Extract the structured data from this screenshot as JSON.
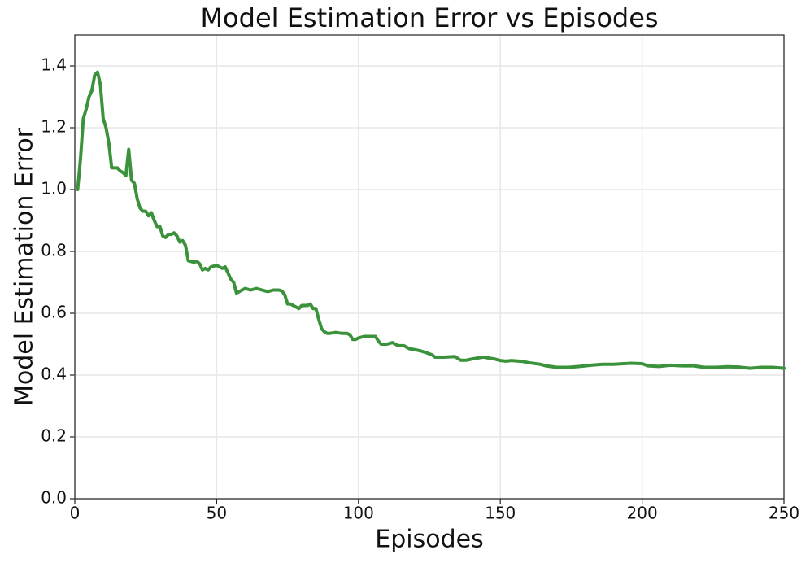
{
  "chart_data": {
    "type": "line",
    "title": "Model Estimation Error vs Episodes",
    "x_label": "Episodes",
    "y_label": "Model Estimation Error",
    "color": "#3a923a",
    "grid": true,
    "xlim": [
      0,
      250
    ],
    "ylim": [
      0,
      1.5
    ],
    "xticks": [
      0,
      50,
      100,
      150,
      200,
      250
    ],
    "yticks": [
      {
        "value": 0,
        "label": "0.0"
      },
      0.2,
      0.4,
      0.6,
      0.8,
      {
        "value": 1,
        "label": "1.0"
      },
      1.2,
      1.4
    ],
    "x": [
      1,
      2,
      3,
      4,
      5,
      6,
      7,
      8,
      9,
      10,
      11,
      12,
      13,
      14,
      15,
      16,
      17,
      18,
      19,
      20,
      21,
      22,
      23,
      24,
      25,
      26,
      27,
      28,
      29,
      30,
      31,
      32,
      33,
      34,
      35,
      36,
      37,
      38,
      39,
      40,
      42,
      43,
      44,
      45,
      46,
      47,
      48,
      50,
      52,
      53,
      54,
      55,
      56,
      57,
      58,
      60,
      62,
      64,
      66,
      68,
      70,
      72,
      73,
      74,
      75,
      76,
      77,
      78,
      79,
      80,
      82,
      83,
      84,
      85,
      86,
      87,
      88,
      89,
      90,
      92,
      94,
      96,
      97,
      98,
      99,
      100,
      102,
      104,
      106,
      107,
      108,
      110,
      112,
      114,
      116,
      118,
      120,
      122,
      124,
      126,
      127,
      130,
      134,
      136,
      138,
      140,
      144,
      146,
      148,
      150,
      152,
      154,
      158,
      160,
      164,
      166,
      170,
      174,
      178,
      182,
      186,
      190,
      196,
      200,
      202,
      206,
      210,
      214,
      218,
      222,
      226,
      230,
      234,
      238,
      242,
      246,
      250
    ],
    "values": [
      1.0,
      1.1,
      1.23,
      1.26,
      1.3,
      1.32,
      1.37,
      1.38,
      1.34,
      1.23,
      1.2,
      1.15,
      1.07,
      1.07,
      1.07,
      1.06,
      1.055,
      1.045,
      1.13,
      1.03,
      1.02,
      0.97,
      0.94,
      0.93,
      0.93,
      0.915,
      0.925,
      0.9,
      0.88,
      0.88,
      0.85,
      0.845,
      0.855,
      0.855,
      0.86,
      0.85,
      0.83,
      0.835,
      0.82,
      0.77,
      0.765,
      0.768,
      0.76,
      0.74,
      0.745,
      0.74,
      0.75,
      0.755,
      0.745,
      0.75,
      0.73,
      0.71,
      0.7,
      0.665,
      0.67,
      0.68,
      0.675,
      0.68,
      0.675,
      0.67,
      0.675,
      0.675,
      0.672,
      0.66,
      0.63,
      0.63,
      0.625,
      0.62,
      0.615,
      0.625,
      0.625,
      0.63,
      0.615,
      0.615,
      0.58,
      0.55,
      0.54,
      0.535,
      0.535,
      0.538,
      0.535,
      0.535,
      0.53,
      0.515,
      0.515,
      0.52,
      0.525,
      0.525,
      0.525,
      0.51,
      0.5,
      0.5,
      0.505,
      0.495,
      0.495,
      0.485,
      0.482,
      0.478,
      0.472,
      0.465,
      0.458,
      0.458,
      0.46,
      0.448,
      0.448,
      0.452,
      0.458,
      0.455,
      0.452,
      0.447,
      0.445,
      0.447,
      0.444,
      0.44,
      0.435,
      0.43,
      0.425,
      0.425,
      0.428,
      0.432,
      0.435,
      0.435,
      0.438,
      0.437,
      0.43,
      0.428,
      0.432,
      0.43,
      0.43,
      0.425,
      0.425,
      0.427,
      0.426,
      0.422,
      0.425,
      0.425,
      0.422
    ]
  }
}
